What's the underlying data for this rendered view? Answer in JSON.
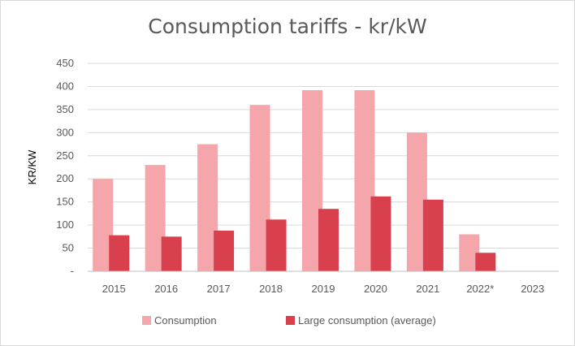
{
  "chart_data": {
    "type": "bar",
    "title": "Consumption tariffs - kr/kW",
    "xlabel": "",
    "ylabel": "KR/KW",
    "ylim": [
      0,
      450
    ],
    "yticks": [
      0,
      50,
      100,
      150,
      200,
      250,
      300,
      350,
      400,
      450
    ],
    "ytick_labels": [
      "-",
      "50",
      "100",
      "150",
      "200",
      "250",
      "300",
      "350",
      "400",
      "450"
    ],
    "grid": true,
    "legend_position": "bottom",
    "categories": [
      "2015",
      "2016",
      "2017",
      "2018",
      "2019",
      "2020",
      "2021",
      "2022*",
      "2023"
    ],
    "series": [
      {
        "name": "Consumption",
        "color": "#f4a6aa",
        "values": [
          200,
          230,
          275,
          360,
          392,
          392,
          300,
          80,
          null
        ]
      },
      {
        "name": "Large consumption (average)",
        "color": "#d9404d",
        "values": [
          78,
          75,
          88,
          112,
          135,
          162,
          155,
          40,
          null
        ]
      }
    ]
  }
}
